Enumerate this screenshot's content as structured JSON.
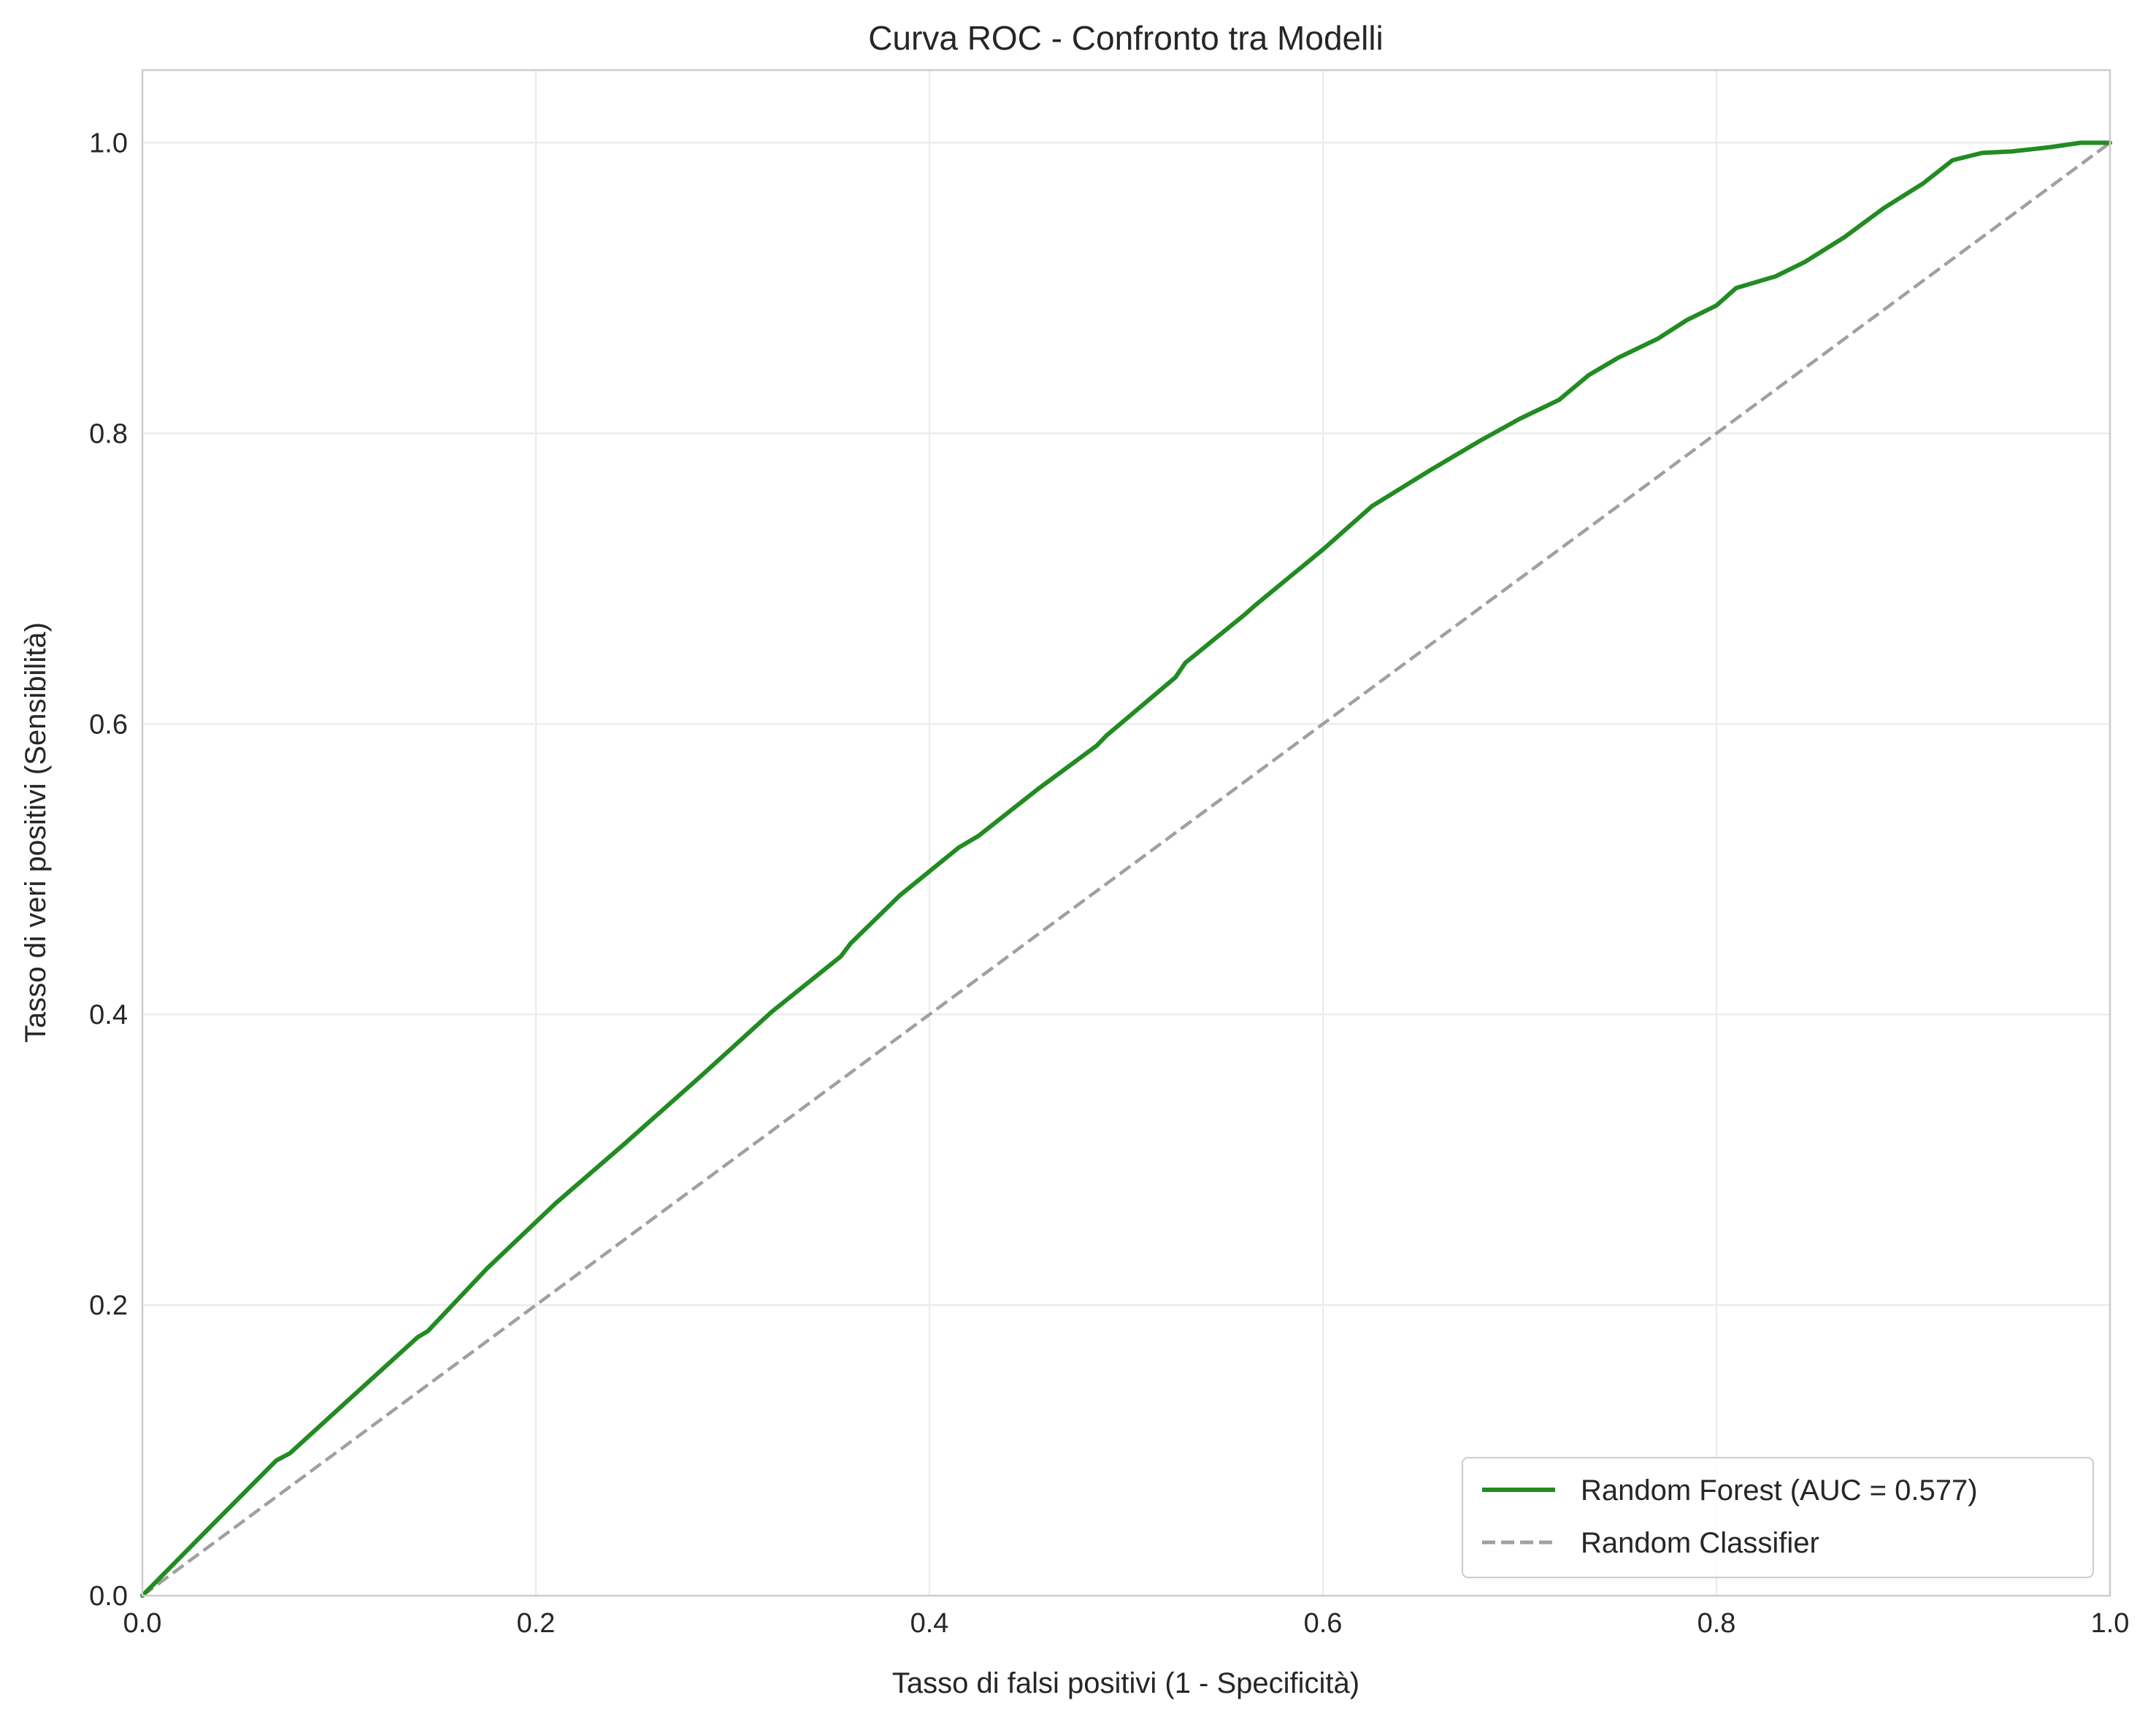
{
  "chart_data": {
    "type": "line",
    "title": "Curva ROC - Confronto tra Modelli",
    "xlabel": "Tasso di falsi positivi (1 - Specificità)",
    "ylabel": "Tasso di veri positivi (Sensibilità)",
    "xlim": [
      0.0,
      1.0
    ],
    "ylim": [
      0.0,
      1.05
    ],
    "xticks": [
      "0.0",
      "0.2",
      "0.4",
      "0.6",
      "0.8",
      "1.0"
    ],
    "yticks": [
      "0.0",
      "0.2",
      "0.4",
      "0.6",
      "0.8",
      "1.0"
    ],
    "grid": true,
    "legend_position": "lower-right",
    "series": [
      {
        "name": "Random Forest (AUC = 0.577)",
        "color": "#228B22",
        "style": "solid",
        "x": [
          0.0,
          0.035,
          0.068,
          0.075,
          0.105,
          0.14,
          0.145,
          0.175,
          0.21,
          0.245,
          0.28,
          0.285,
          0.32,
          0.355,
          0.36,
          0.385,
          0.415,
          0.425,
          0.455,
          0.485,
          0.49,
          0.525,
          0.53,
          0.56,
          0.565,
          0.6,
          0.625,
          0.655,
          0.68,
          0.7,
          0.72,
          0.735,
          0.75,
          0.77,
          0.785,
          0.8,
          0.81,
          0.83,
          0.845,
          0.865,
          0.885,
          0.905,
          0.92,
          0.935,
          0.95,
          0.97,
          0.985,
          1.0
        ],
        "y": [
          0.0,
          0.048,
          0.093,
          0.098,
          0.135,
          0.178,
          0.182,
          0.225,
          0.27,
          0.311,
          0.353,
          0.359,
          0.402,
          0.44,
          0.449,
          0.482,
          0.515,
          0.523,
          0.555,
          0.585,
          0.592,
          0.632,
          0.642,
          0.675,
          0.681,
          0.72,
          0.75,
          0.775,
          0.795,
          0.81,
          0.823,
          0.84,
          0.852,
          0.865,
          0.878,
          0.888,
          0.9,
          0.908,
          0.918,
          0.935,
          0.955,
          0.972,
          0.988,
          0.993,
          0.994,
          0.997,
          1.0,
          1.0
        ]
      },
      {
        "name": "Random Classifier",
        "color": "#a0a0a0",
        "style": "dashed",
        "x": [
          0.0,
          1.0
        ],
        "y": [
          0.0,
          1.0
        ]
      }
    ]
  }
}
